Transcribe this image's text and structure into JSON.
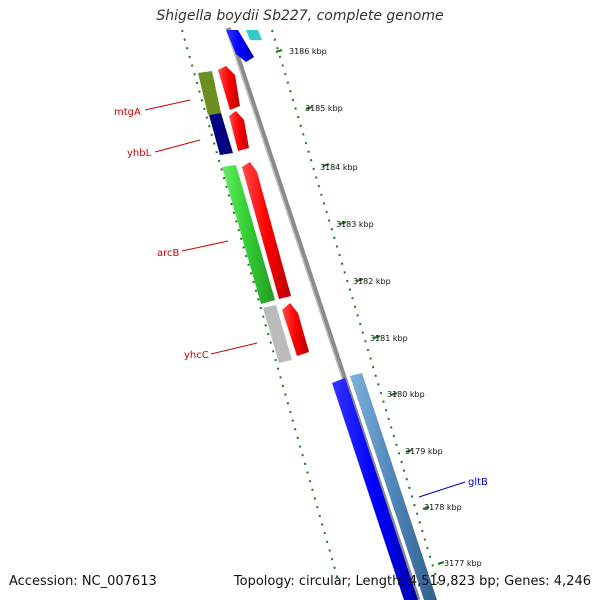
{
  "title": "Shigella boydii Sb227, complete genome",
  "footer": {
    "accession": "Accession: NC_007613",
    "summary": "Topology: circular; Length: 4,519,823 bp; Genes: 4,246"
  },
  "scale_labels": [
    "3186 kbp",
    "3185 kbp",
    "3184 kbp",
    "3183 kbp",
    "3182 kbp",
    "3181 kbp",
    "3180 kbp",
    "3179 kbp",
    "3178 kbp",
    "3177 kbp"
  ],
  "gene_labels": [
    {
      "name": "mtgA",
      "color": "#cc0000"
    },
    {
      "name": "yhbL",
      "color": "#cc0000"
    },
    {
      "name": "arcB",
      "color": "#cc0000"
    },
    {
      "name": "yhcC",
      "color": "#cc0000"
    },
    {
      "name": "gltB",
      "color": "#0000cc"
    }
  ],
  "colors": {
    "backbone": "#8a8a8a",
    "tick_major": "#1a7a1a",
    "forward_gene": "#ff0000",
    "reverse_blue": "#0000ff",
    "reverse_steel": "#4f86b8",
    "cyan_gene": "#33cccc",
    "olive_gene": "#6b8e23",
    "navy_gene": "#000080",
    "light_green_gene": "#33cc33",
    "gray_gene": "#bbbbbb"
  }
}
